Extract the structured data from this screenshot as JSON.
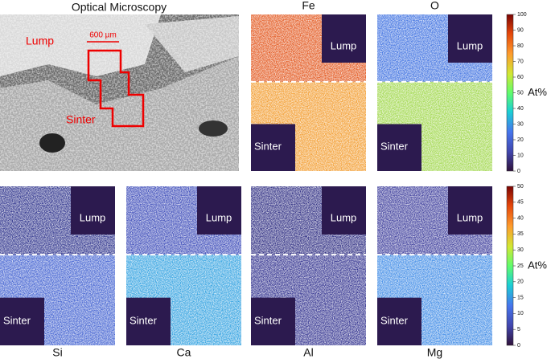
{
  "optical": {
    "title": "Optical Microscopy",
    "labels": [
      "Lump",
      "Sinter"
    ],
    "scale_bar": "600 µm"
  },
  "maps": [
    {
      "element": "Fe",
      "labels": [
        "Lump",
        "Sinter"
      ]
    },
    {
      "element": "O",
      "labels": [
        "Lump",
        "Sinter"
      ]
    },
    {
      "element": "Si",
      "labels": [
        "Lump",
        "Sinter"
      ]
    },
    {
      "element": "Ca",
      "labels": [
        "Lump",
        "Sinter"
      ]
    },
    {
      "element": "Al",
      "labels": [
        "Lump",
        "Sinter"
      ]
    },
    {
      "element": "Mg",
      "labels": [
        "Lump",
        "Sinter"
      ]
    }
  ],
  "colorbars": [
    {
      "label": "At%",
      "ticks": [
        0,
        10,
        20,
        30,
        40,
        50,
        60,
        70,
        80,
        90,
        100
      ]
    },
    {
      "label": "At%",
      "ticks": [
        0,
        5,
        10,
        15,
        20,
        25,
        30,
        35,
        40,
        45,
        50
      ]
    }
  ]
}
